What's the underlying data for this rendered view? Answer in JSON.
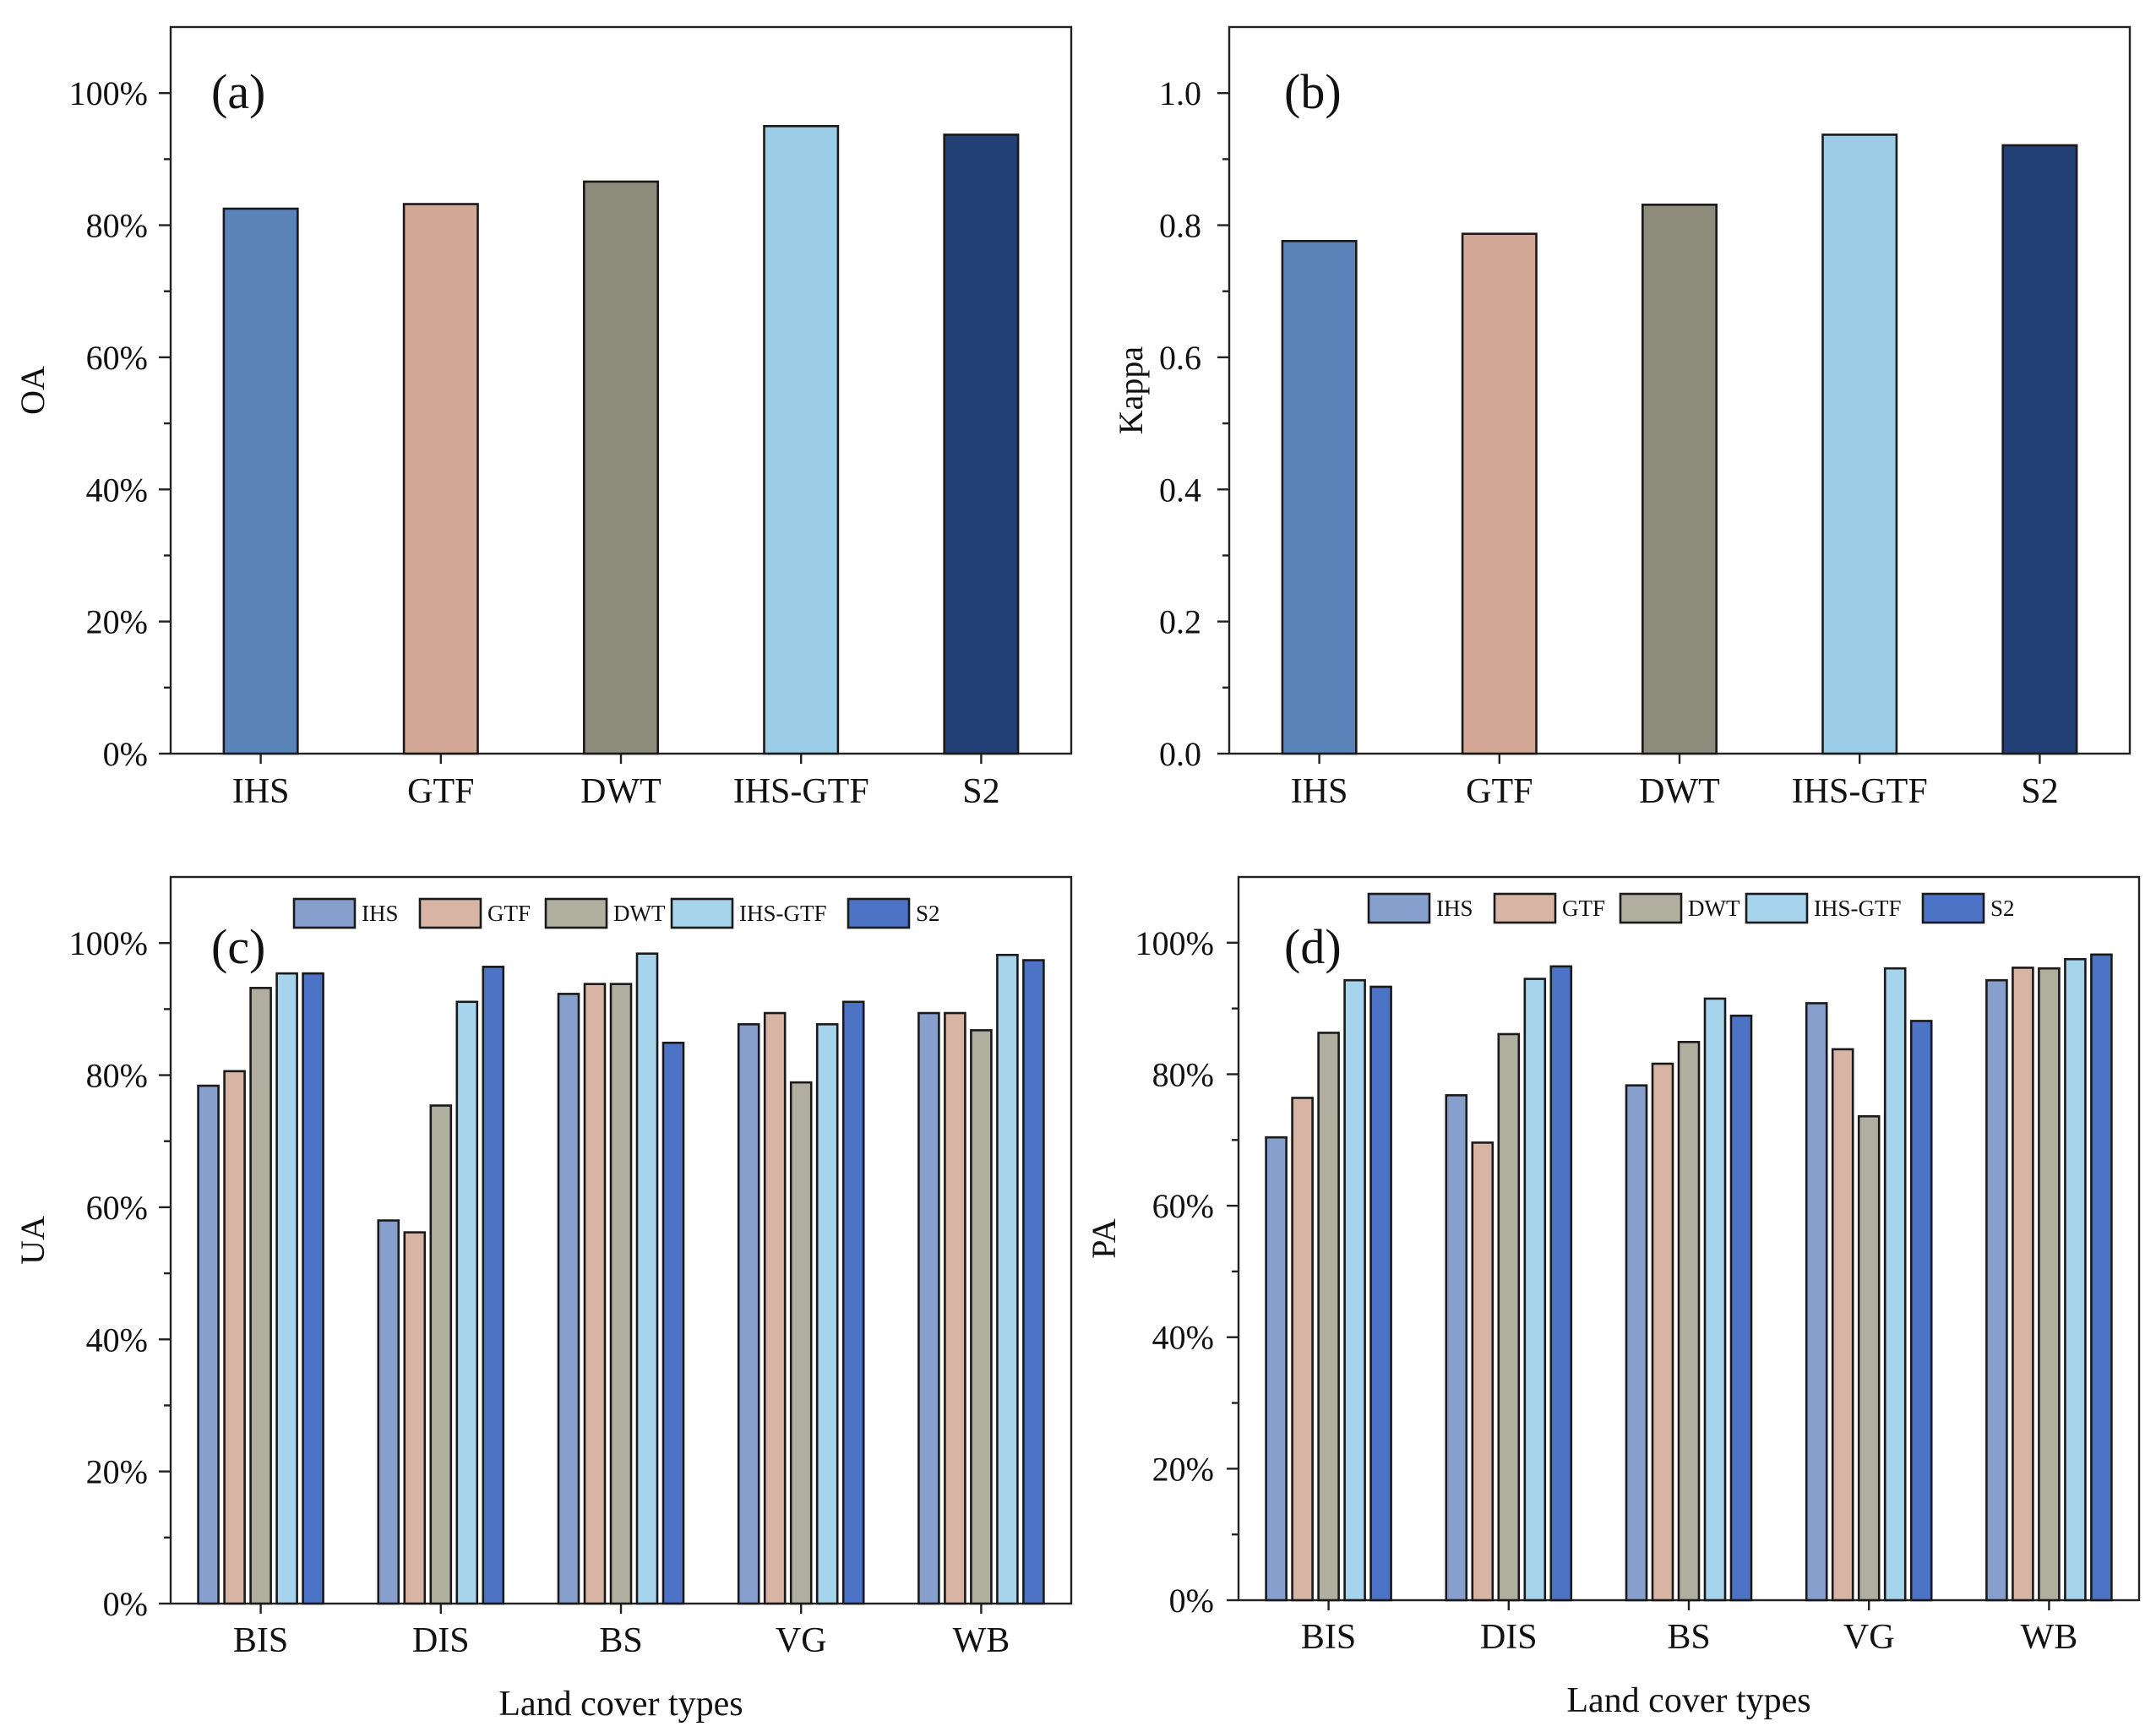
{
  "chart_data": [
    {
      "panel": "(a)",
      "type": "bar",
      "categories": [
        "IHS",
        "GTF",
        "DWT",
        "IHS-GTF",
        "S2"
      ],
      "values": [
        82.5,
        83.2,
        86.6,
        95.0,
        93.7
      ],
      "ylabel": "OA",
      "xlabel": "",
      "ylim": [
        0,
        110
      ],
      "yticks": [
        0,
        20,
        40,
        60,
        80,
        100
      ],
      "ytick_labels": [
        "0%",
        "20%",
        "40%",
        "60%",
        "80%",
        "100%"
      ],
      "colors": [
        "#5a83b9",
        "#d3a897",
        "#8e8c7d",
        "#9bcde6",
        "#223f76"
      ]
    },
    {
      "panel": "(b)",
      "type": "bar",
      "categories": [
        "IHS",
        "GTF",
        "DWT",
        "IHS-GTF",
        "S2"
      ],
      "values": [
        0.776,
        0.787,
        0.831,
        0.937,
        0.921
      ],
      "ylabel": "Kappa",
      "xlabel": "",
      "ylim": [
        0,
        1.1
      ],
      "yticks": [
        0,
        0.2,
        0.4,
        0.6,
        0.8,
        1.0
      ],
      "ytick_labels": [
        "0.0",
        "0.2",
        "0.4",
        "0.6",
        "0.8",
        "1.0"
      ],
      "colors": [
        "#5a83b9",
        "#d3a897",
        "#8e8c7d",
        "#9bcde6",
        "#223f76"
      ]
    },
    {
      "panel": "(c)",
      "type": "bar",
      "categories": [
        "BIS",
        "DIS",
        "BS",
        "VG",
        "WB"
      ],
      "series": [
        {
          "name": "IHS",
          "color": "#869fcc",
          "values": [
            78.4,
            58.0,
            92.3,
            87.7,
            89.4
          ]
        },
        {
          "name": "GTF",
          "color": "#d8b4a5",
          "values": [
            80.6,
            56.2,
            93.8,
            89.4,
            89.4
          ]
        },
        {
          "name": "DWT",
          "color": "#afae9f",
          "values": [
            93.2,
            75.4,
            93.8,
            78.9,
            86.8
          ]
        },
        {
          "name": "IHS-GTF",
          "color": "#a6d4ec",
          "values": [
            95.4,
            91.1,
            98.4,
            87.7,
            98.2
          ]
        },
        {
          "name": "S2",
          "color": "#4d73c7",
          "values": [
            95.4,
            96.4,
            84.9,
            91.1,
            97.4
          ]
        }
      ],
      "ylabel": "UA",
      "xlabel": "Land cover types",
      "ylim": [
        0,
        110
      ],
      "yticks": [
        0,
        20,
        40,
        60,
        80,
        100
      ],
      "ytick_labels": [
        "0%",
        "20%",
        "40%",
        "60%",
        "80%",
        "100%"
      ],
      "legend": "top"
    },
    {
      "panel": "(d)",
      "type": "bar",
      "categories": [
        "BIS",
        "DIS",
        "BS",
        "VG",
        "WB"
      ],
      "series": [
        {
          "name": "IHS",
          "color": "#869fcc",
          "values": [
            70.4,
            76.8,
            78.3,
            90.8,
            94.3
          ]
        },
        {
          "name": "GTF",
          "color": "#d8b4a5",
          "values": [
            76.4,
            69.6,
            81.6,
            83.8,
            96.2
          ]
        },
        {
          "name": "DWT",
          "color": "#afae9f",
          "values": [
            86.3,
            86.1,
            84.9,
            73.6,
            96.1
          ]
        },
        {
          "name": "IHS-GTF",
          "color": "#a6d4ec",
          "values": [
            94.3,
            94.5,
            91.5,
            96.1,
            97.5
          ]
        },
        {
          "name": "S2",
          "color": "#4d73c7",
          "values": [
            93.3,
            96.4,
            88.9,
            88.1,
            98.2
          ]
        }
      ],
      "ylabel": "PA",
      "xlabel": "Land cover types",
      "ylim": [
        0,
        110
      ],
      "yticks": [
        0,
        20,
        40,
        60,
        80,
        100
      ],
      "ytick_labels": [
        "0%",
        "20%",
        "40%",
        "60%",
        "80%",
        "100%"
      ],
      "legend": "top"
    }
  ]
}
